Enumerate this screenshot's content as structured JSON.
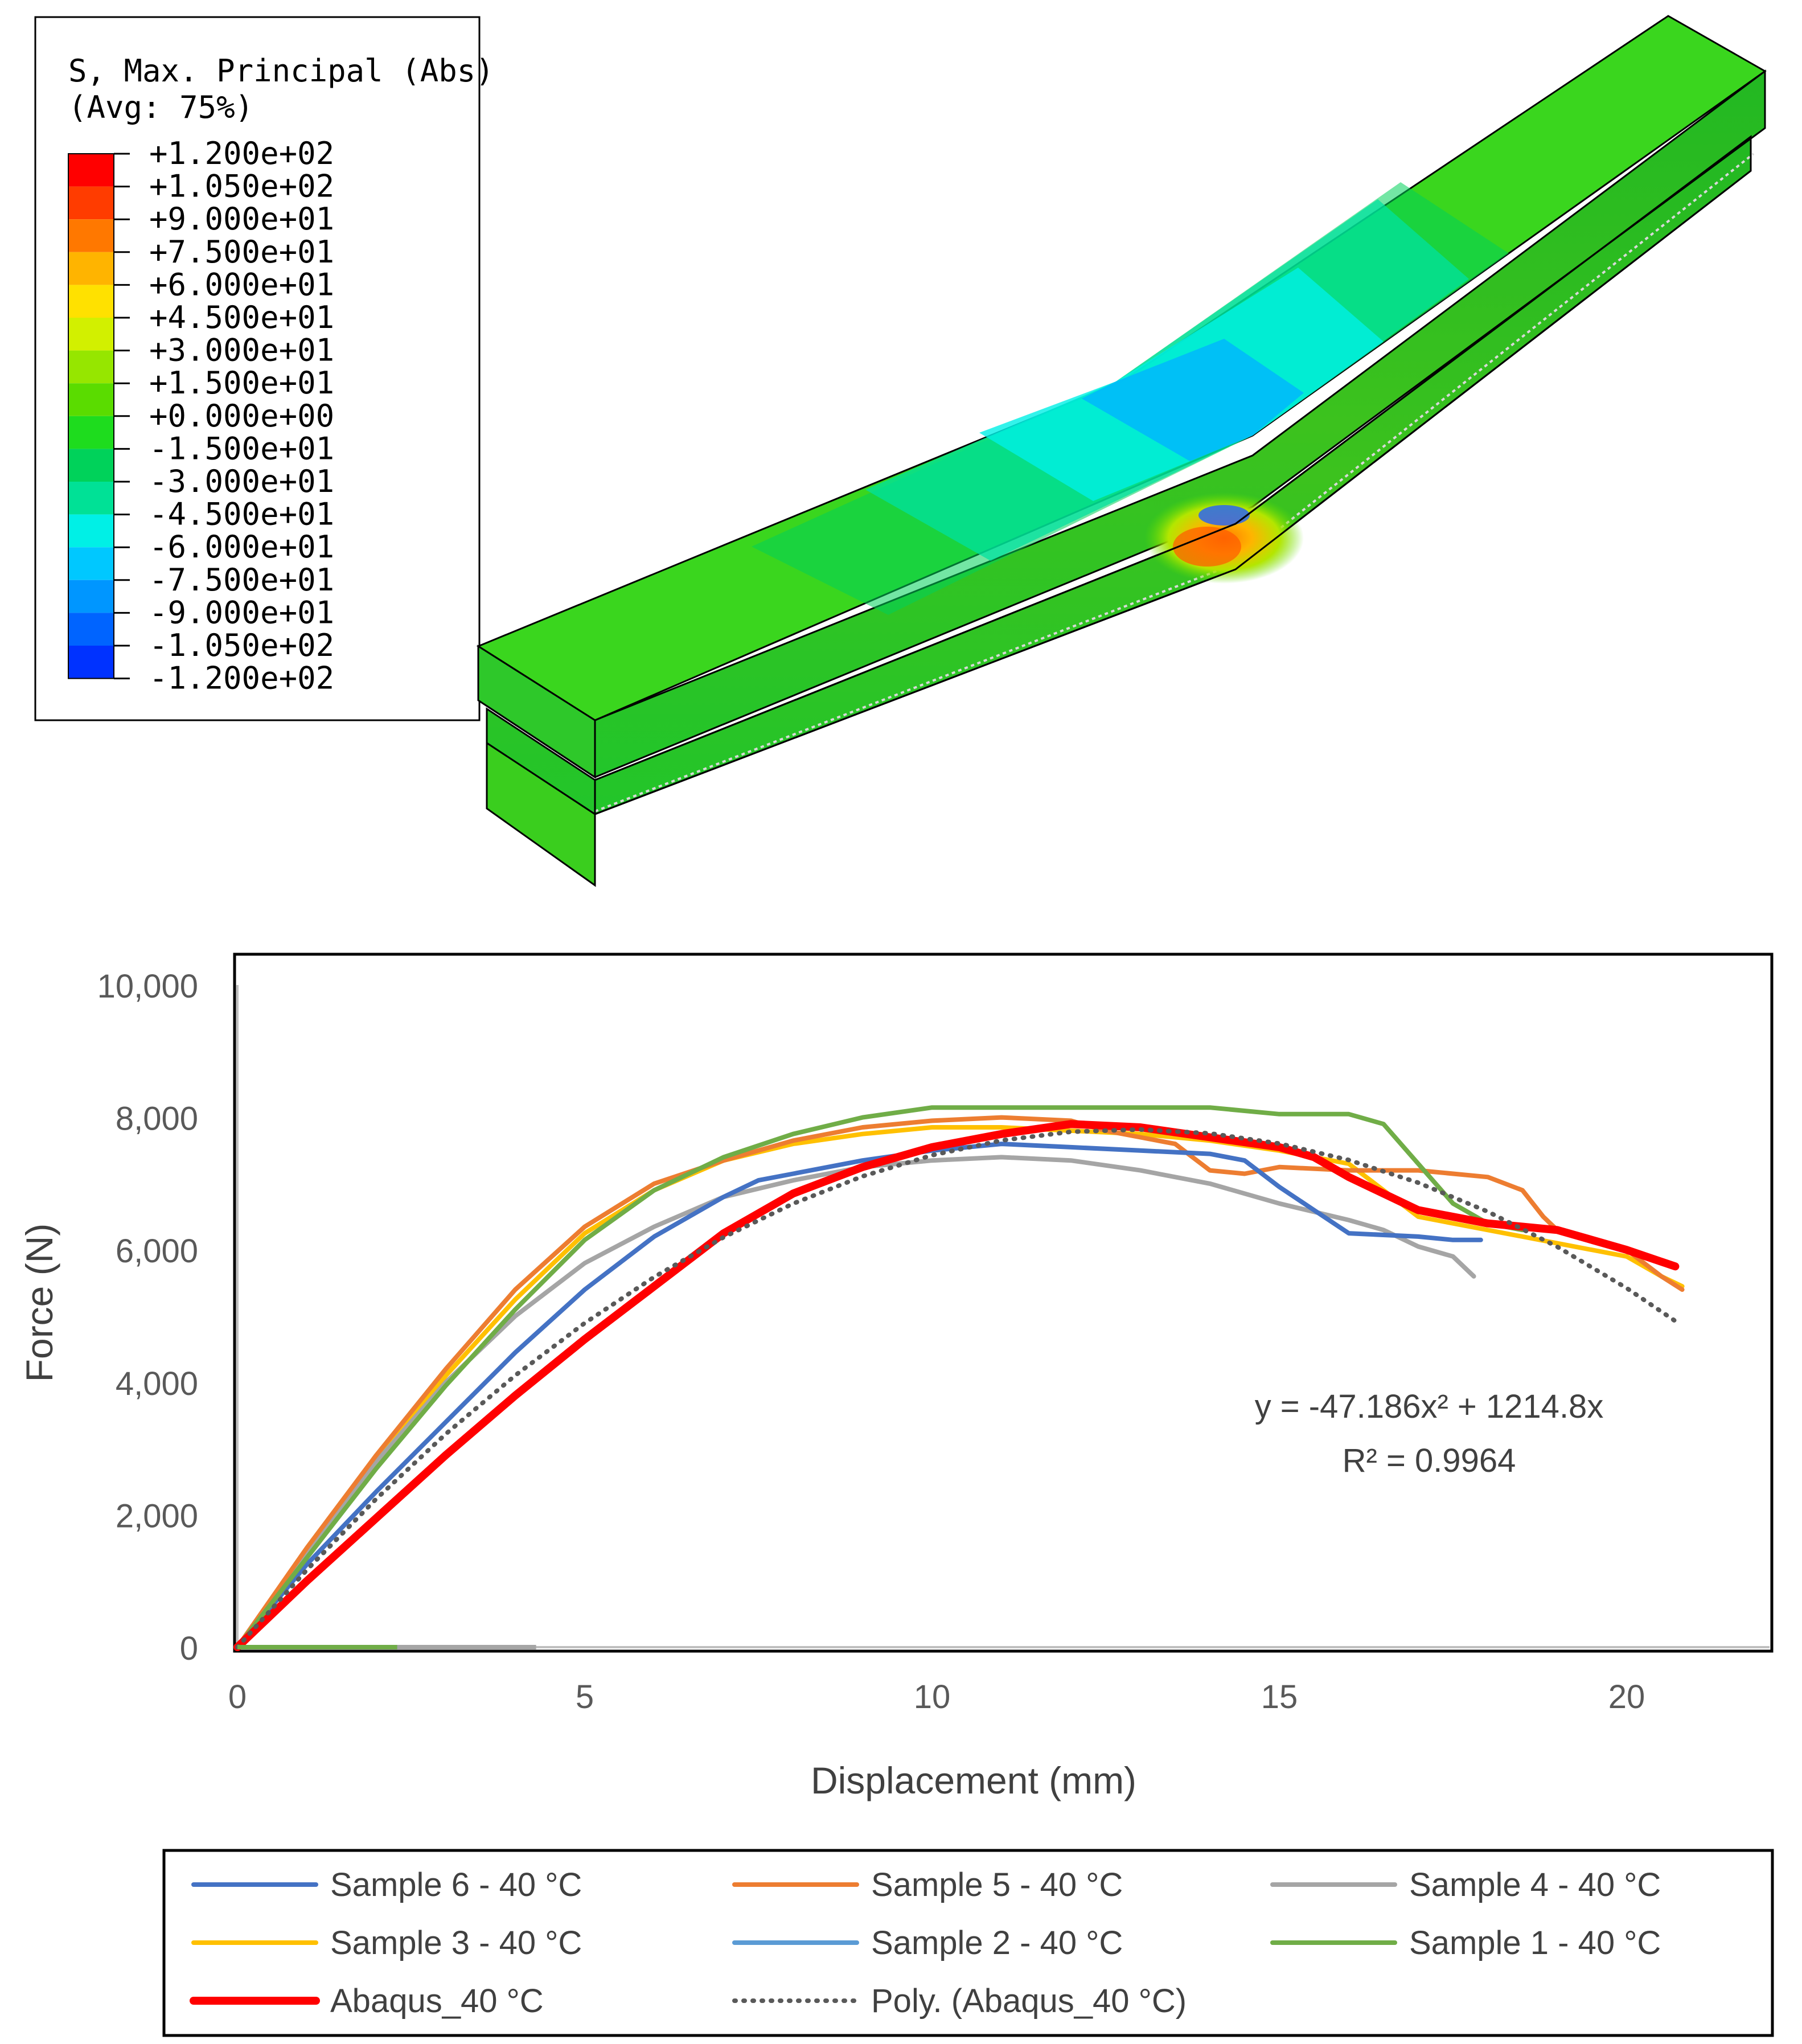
{
  "contour_legend": {
    "title_line1": "S, Max. Principal (Abs)",
    "title_line2": "(Avg: 75%)",
    "levels": [
      {
        "label": "+1.200e+02",
        "color": "#ff0000"
      },
      {
        "label": "+1.050e+02",
        "color": "#ff3c00"
      },
      {
        "label": "+9.000e+01",
        "color": "#ff7800"
      },
      {
        "label": "+7.500e+01",
        "color": "#ffb400"
      },
      {
        "label": "+6.000e+01",
        "color": "#ffe100"
      },
      {
        "label": "+4.500e+01",
        "color": "#d2f000"
      },
      {
        "label": "+3.000e+01",
        "color": "#96e600"
      },
      {
        "label": "+1.500e+01",
        "color": "#5adc00"
      },
      {
        "label": "+0.000e+00",
        "color": "#1edc1e"
      },
      {
        "label": "-1.500e+01",
        "color": "#00d25a"
      },
      {
        "label": "-3.000e+01",
        "color": "#00e196"
      },
      {
        "label": "-4.500e+01",
        "color": "#00f0e6"
      },
      {
        "label": "-6.000e+01",
        "color": "#00c8ff"
      },
      {
        "label": "-7.500e+01",
        "color": "#0096ff"
      },
      {
        "label": "-9.000e+01",
        "color": "#0064ff"
      },
      {
        "label": "-1.050e+02",
        "color": "#0032ff"
      },
      {
        "label": "-1.200e+02",
        "color": "#0000ff"
      }
    ]
  },
  "chart_data": {
    "type": "line",
    "title": "",
    "xlabel": "Displacement (mm)",
    "ylabel": "Force (N)",
    "xlim": [
      0,
      22
    ],
    "ylim": [
      0,
      10000
    ],
    "x_ticks": [
      0,
      5,
      10,
      15,
      20
    ],
    "y_ticks": [
      0,
      2000,
      4000,
      6000,
      8000,
      10000
    ],
    "x_tick_labels": [
      "0",
      "5",
      "10",
      "15",
      "20"
    ],
    "y_tick_labels": [
      "0",
      "2,000",
      "4,000",
      "6,000",
      "8,000",
      "10,000"
    ],
    "grid": false,
    "legend_position": "bottom",
    "annotation": {
      "equation": "y = -47.186x² + 1214.8x",
      "r_squared": "R² = 0.9964"
    },
    "series": [
      {
        "name": "Sample 6 - 40 °C",
        "color": "#4472c4",
        "style": "solid",
        "width": 8,
        "x": [
          0,
          1,
          2,
          3,
          4,
          5,
          6,
          7,
          7.5,
          8,
          9,
          10,
          11,
          12,
          13,
          14,
          14.5,
          15,
          15.5,
          16,
          17,
          17.5,
          17.9
        ],
        "y": [
          0,
          1250,
          2350,
          3400,
          4450,
          5400,
          6200,
          6800,
          7050,
          7150,
          7350,
          7500,
          7600,
          7550,
          7500,
          7450,
          7350,
          6950,
          6600,
          6250,
          6200,
          6150,
          6150
        ]
      },
      {
        "name": "Sample 5 - 40 °C",
        "color": "#ed7d31",
        "style": "solid",
        "width": 8,
        "x": [
          0,
          1,
          2,
          3,
          4,
          5,
          6,
          7,
          8,
          9,
          10,
          11,
          12,
          12.5,
          13,
          13.5,
          14,
          14.5,
          15,
          16,
          17,
          18,
          18.5,
          18.8,
          19,
          20,
          20.5,
          20.8
        ],
        "y": [
          0,
          1500,
          2900,
          4200,
          5400,
          6350,
          7000,
          7350,
          7650,
          7850,
          7950,
          8000,
          7950,
          7800,
          7700,
          7600,
          7200,
          7150,
          7250,
          7200,
          7200,
          7100,
          6900,
          6500,
          6300,
          6000,
          5600,
          5400
        ]
      },
      {
        "name": "Sample 4 - 40 °C",
        "color": "#a5a5a5",
        "style": "solid",
        "width": 8,
        "x": [
          0,
          1,
          2,
          3,
          4,
          5,
          6,
          7,
          8,
          9,
          10,
          11,
          12,
          13,
          14,
          15,
          16,
          16.5,
          17,
          17.5,
          17.8
        ],
        "y": [
          0,
          1450,
          2800,
          4000,
          5000,
          5800,
          6350,
          6800,
          7050,
          7250,
          7350,
          7400,
          7350,
          7200,
          7000,
          6700,
          6450,
          6300,
          6050,
          5900,
          5600
        ]
      },
      {
        "name": "Sample 3 - 40 °C",
        "color": "#ffc000",
        "style": "solid",
        "width": 8,
        "x": [
          0,
          1,
          2,
          3,
          4,
          5,
          6,
          7,
          8,
          9,
          10,
          11,
          12,
          13,
          14,
          15,
          16,
          17,
          17.5,
          18,
          19,
          20,
          20.5,
          20.8
        ],
        "y": [
          0,
          1400,
          2800,
          4100,
          5250,
          6250,
          6900,
          7350,
          7600,
          7750,
          7850,
          7850,
          7800,
          7750,
          7650,
          7500,
          7300,
          6500,
          6400,
          6300,
          6100,
          5900,
          5600,
          5450
        ]
      },
      {
        "name": "Sample 2 - 40 °C",
        "color": "#5b9bd5",
        "style": "solid",
        "width": 8,
        "x": [
          0,
          2.3
        ],
        "y": [
          0,
          0
        ]
      },
      {
        "name": "Sample 1 - 40 °C",
        "color": "#70ad47",
        "style": "solid",
        "width": 8,
        "x": [
          0,
          1,
          2,
          3,
          4,
          5,
          6,
          7,
          8,
          9,
          10,
          11,
          12,
          13,
          14,
          15,
          16,
          16.5,
          17,
          17.5,
          18,
          18.5
        ],
        "y": [
          0,
          1350,
          2700,
          3950,
          5100,
          6150,
          6900,
          7400,
          7750,
          8000,
          8150,
          8150,
          8150,
          8150,
          8150,
          8050,
          8050,
          7900,
          7300,
          6700,
          6400,
          6300
        ]
      },
      {
        "name": "Abaqus_40 °C",
        "color": "#ff0000",
        "style": "solid",
        "width": 14,
        "x": [
          0,
          1,
          2,
          3,
          4,
          5,
          6,
          7,
          8,
          9,
          10,
          11,
          12,
          13,
          14,
          15,
          15.5,
          16,
          17,
          18,
          19,
          20,
          20.7
        ],
        "y": [
          0,
          1000,
          1950,
          2900,
          3800,
          4650,
          5450,
          6250,
          6850,
          7250,
          7550,
          7750,
          7900,
          7850,
          7700,
          7550,
          7400,
          7100,
          6600,
          6400,
          6300,
          6000,
          5750
        ]
      },
      {
        "name": "Poly. (Abaqus_40 °C)",
        "color": "#595959",
        "style": "dotted",
        "width": 8,
        "x": [
          0,
          1,
          2,
          3,
          4,
          5,
          6,
          7,
          8,
          9,
          10,
          11,
          12,
          13,
          14,
          15,
          16,
          17,
          18,
          19,
          20,
          20.7
        ],
        "y": [
          0,
          1168,
          2241,
          3220,
          4104,
          4894,
          5590,
          6191,
          6698,
          7111,
          7429,
          7653,
          7783,
          7818,
          7759,
          7605,
          7357,
          7014,
          6578,
          6047,
          5422,
          4925
        ]
      }
    ]
  }
}
